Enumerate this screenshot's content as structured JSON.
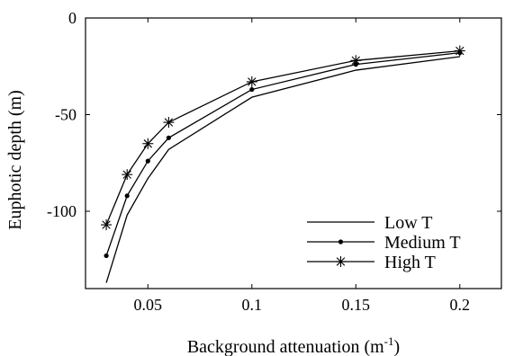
{
  "chart_data": {
    "type": "line",
    "title": "",
    "xlabel": "Background attenuation (m",
    "xlabel_sup": "-1",
    "xlabel_suffix": ")",
    "ylabel": "Euphotic depth (m)",
    "xlim": [
      0.02,
      0.22
    ],
    "ylim": [
      -140,
      0
    ],
    "xticks": [
      0.05,
      0.1,
      0.15,
      0.2
    ],
    "xtick_labels": [
      "0.05",
      "0.1",
      "0.15",
      "0.2"
    ],
    "yticks": [
      0,
      -50,
      -100
    ],
    "ytick_labels": [
      "0",
      "-50",
      "-100"
    ],
    "grid": false,
    "legend_position": "lower-right",
    "x": [
      0.03,
      0.04,
      0.05,
      0.06,
      0.1,
      0.15,
      0.2
    ],
    "series": [
      {
        "name": "Low T",
        "marker": "none",
        "values": [
          -137,
          -102,
          -83,
          -68,
          -41,
          -27,
          -20
        ]
      },
      {
        "name": "Medium T",
        "marker": "dot",
        "values": [
          -123,
          -92,
          -74,
          -62,
          -37,
          -24,
          -18
        ]
      },
      {
        "name": "High T",
        "marker": "star",
        "values": [
          -107,
          -81,
          -65,
          -54,
          -33,
          -22,
          -17
        ]
      }
    ],
    "line_color": "#000000"
  }
}
